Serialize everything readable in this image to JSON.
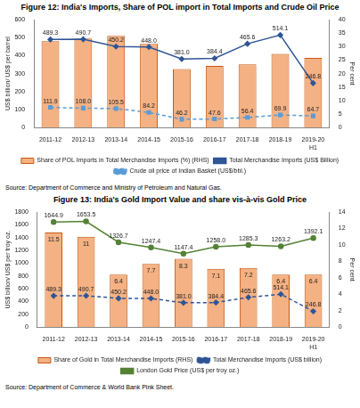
{
  "chart_data": [
    {
      "type": "bar",
      "title": "Figure 12: India's Imports, Share of POL import in Total Imports and Crude Oil Price",
      "source": "Source: Department of Commerce and Ministry of Petroleum and Natural Gas.",
      "ylabel": "US$ billion/ US$ per barrel",
      "y2label": "Per cent",
      "categories": [
        "2011-12",
        "2012-13",
        "2013-14",
        "2014-15",
        "2015-16",
        "2016-17",
        "2017-18",
        "2018-19",
        "2019-20 H1"
      ],
      "ylim": [
        0,
        600
      ],
      "yticks": [
        0,
        100,
        200,
        300,
        400,
        500,
        600
      ],
      "y2lim": [
        0,
        40
      ],
      "y2ticks": [
        0,
        5,
        10,
        15,
        20,
        25,
        30,
        35,
        40
      ],
      "grid": false,
      "legend": "bottom",
      "series": [
        {
          "name": "Share of POL Imports in Total Merchandise Imports (%) (RHS)",
          "type": "bar",
          "axis": "y2",
          "color": "#f4b183",
          "values": [
            32.0,
            33.0,
            34.0,
            31.0,
            21.7,
            22.8,
            23.4,
            27.3,
            25.8
          ],
          "data_labels": false
        },
        {
          "name": "Total Merchandise Imports (US$ Billion)",
          "type": "line",
          "color": "#2f5597",
          "marker": "diamond",
          "line_style": "solid",
          "values": [
            489.3,
            490.7,
            450.2,
            448.0,
            381.0,
            384.4,
            465.6,
            514.1,
            246.8
          ],
          "value_labels": [
            "489.3",
            "490.7",
            "450.2",
            "448.0",
            "381.0",
            "384.4",
            "465.6",
            "514.1",
            "246.8"
          ],
          "data_labels": true
        },
        {
          "name": "Crude oil price of Indian Basket (US$/bbl.)",
          "type": "line",
          "color": "#5b9bd5",
          "marker": "square",
          "line_style": "dashed",
          "values": [
            111.9,
            108.0,
            105.5,
            84.2,
            46.2,
            47.6,
            56.4,
            69.9,
            64.7
          ],
          "value_labels": [
            "111.9",
            "108.0",
            "105.5",
            "84.2",
            "46.2",
            "47.6",
            "56.4",
            "69.9",
            "64.7"
          ],
          "data_labels": true
        }
      ]
    },
    {
      "type": "bar",
      "title": "Figure 13: India's Gold Import Value and share vis-à-vis Gold Price",
      "source": "Source: Department of Commerce & World Bank Pink Sheet.",
      "ylabel": "US$ billion/ US$ per troy oz.",
      "y2label": "Per cent",
      "categories": [
        "2011-12",
        "2012-13",
        "2013-14",
        "2014-15",
        "2015-16",
        "2016-17",
        "2017-18",
        "2018-19",
        "2019-20 H1"
      ],
      "ylim": [
        0,
        1800
      ],
      "yticks": [
        0,
        200,
        400,
        600,
        800,
        1000,
        1200,
        1400,
        1600,
        1800
      ],
      "y2lim": [
        0,
        14
      ],
      "y2ticks": [
        0,
        2,
        4,
        6,
        8,
        10,
        12,
        14
      ],
      "grid": false,
      "legend": "bottom",
      "series": [
        {
          "name": "Share of Gold in Total Merchandise Imports (RHS)",
          "type": "bar",
          "axis": "y2",
          "color": "#f4b183",
          "values": [
            11.5,
            11.0,
            6.4,
            7.7,
            8.3,
            7.1,
            7.2,
            6.4,
            6.4
          ],
          "data_labels": true
        },
        {
          "name": "Total Merchandise Imports (US$ billion)",
          "type": "line",
          "color": "#2f5597",
          "marker": "diamond",
          "line_style": "dashed",
          "values": [
            489.3,
            490.7,
            450.2,
            448.0,
            381.0,
            384.4,
            465.6,
            514.1,
            246.8
          ],
          "value_labels": [
            "489.3",
            "490.7",
            "450.2",
            "448.0",
            "381.0",
            "384.4",
            "465.6",
            "514.1",
            "246.8"
          ],
          "data_labels": true
        },
        {
          "name": "London Gold Price (US$ per troy oz.)",
          "type": "line",
          "color": "#548235",
          "marker": "circle",
          "line_style": "solid",
          "values": [
            1644.9,
            1653.5,
            1326.7,
            1247.4,
            1147.4,
            1258.0,
            1285.3,
            1263.2,
            1392.1
          ],
          "value_labels": [
            "1644.9",
            "1653.5",
            "1326.7",
            "1247.4",
            "1147.4",
            "1258.0",
            "1285.3",
            "1263.2",
            "1392.1"
          ],
          "data_labels": true
        }
      ]
    }
  ]
}
